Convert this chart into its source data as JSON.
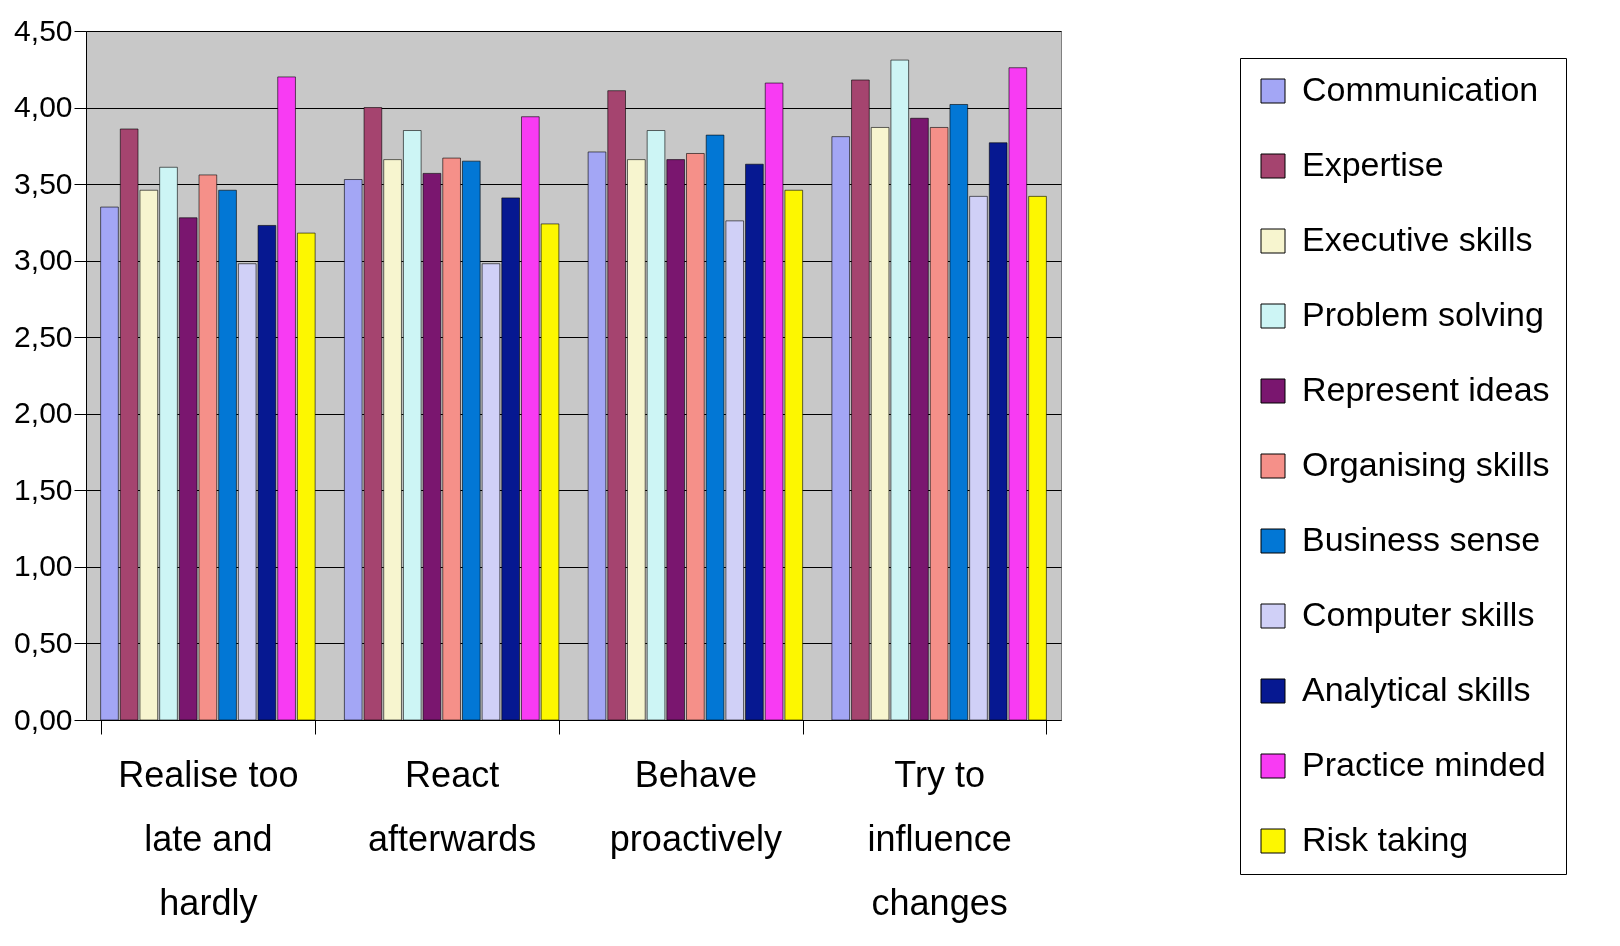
{
  "chart_data": {
    "type": "bar",
    "categories": [
      "Realise too late and hardly",
      "React afterwards",
      "Behave proactively",
      "Try to influence changes"
    ],
    "series": [
      {
        "name": "Communication",
        "color": "#a3a6f5",
        "values": [
          3.35,
          3.53,
          3.71,
          3.81
        ]
      },
      {
        "name": "Expertise",
        "color": "#a5446f",
        "values": [
          3.86,
          4.0,
          4.11,
          4.18
        ]
      },
      {
        "name": "Executive skills",
        "color": "#f7f5cf",
        "values": [
          3.46,
          3.66,
          3.66,
          3.87
        ]
      },
      {
        "name": "Problem solving",
        "color": "#cdf5f5",
        "values": [
          3.61,
          3.85,
          3.85,
          4.31
        ]
      },
      {
        "name": "Represent ideas",
        "color": "#7a166f",
        "values": [
          3.28,
          3.57,
          3.66,
          3.93
        ]
      },
      {
        "name": "Organising skills",
        "color": "#f59089",
        "values": [
          3.56,
          3.67,
          3.7,
          3.87
        ]
      },
      {
        "name": "Business sense",
        "color": "#0277d5",
        "values": [
          3.46,
          3.65,
          3.82,
          4.02
        ]
      },
      {
        "name": "Computer skills",
        "color": "#d0d0f7",
        "values": [
          2.98,
          2.98,
          3.26,
          3.42
        ]
      },
      {
        "name": "Analytical skills",
        "color": "#061891",
        "values": [
          3.23,
          3.41,
          3.63,
          3.77
        ]
      },
      {
        "name": "Practice minded",
        "color": "#f83bf3",
        "values": [
          4.2,
          3.94,
          4.16,
          4.26
        ]
      },
      {
        "name": "Risk taking",
        "color": "#fdf700",
        "values": [
          3.18,
          3.24,
          3.46,
          3.42
        ]
      }
    ],
    "ylim": [
      0,
      4.5
    ],
    "yticks": [
      {
        "value": 0,
        "label": "0,00"
      },
      {
        "value": 0.5,
        "label": "0,50"
      },
      {
        "value": 1,
        "label": "1,00"
      },
      {
        "value": 1.5,
        "label": "1,50"
      },
      {
        "value": 2,
        "label": "2,00"
      },
      {
        "value": 2.5,
        "label": "2,50"
      },
      {
        "value": 3,
        "label": "3,00"
      },
      {
        "value": 3.5,
        "label": "3,50"
      },
      {
        "value": 4,
        "label": "4,00"
      },
      {
        "value": 4.5,
        "label": "4,50"
      }
    ],
    "grid": "y",
    "legend": "right"
  }
}
